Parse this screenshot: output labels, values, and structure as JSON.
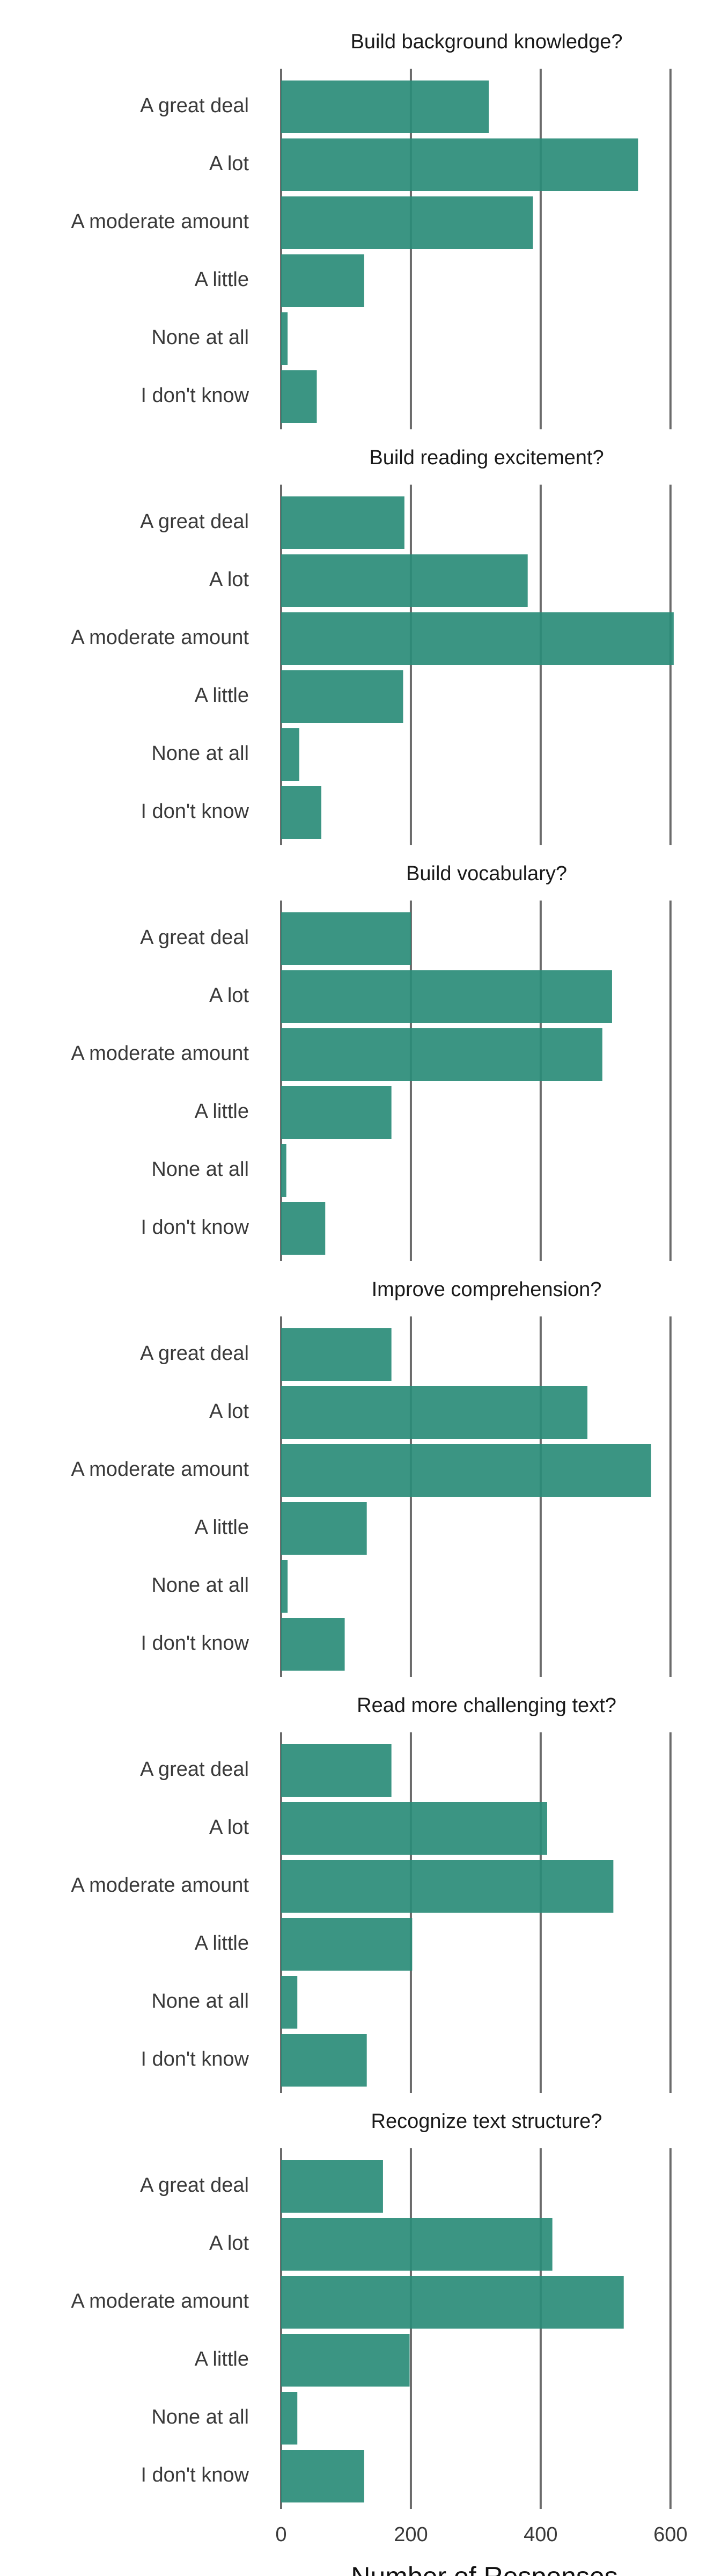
{
  "chart_data": {
    "type": "bar",
    "orientation": "horizontal",
    "categories": [
      "A great deal",
      "A lot",
      "A moderate amount",
      "A little",
      "None at all",
      "I don't know"
    ],
    "xlabel": "Number of Responses",
    "xlim": [
      0,
      620
    ],
    "xticks": [
      0,
      200,
      400,
      600
    ],
    "grid": true,
    "bar_color": "#2a8c78",
    "panels": [
      {
        "title": "Build background knowledge?",
        "values": [
          320,
          550,
          388,
          128,
          10,
          55
        ]
      },
      {
        "title": "Build reading excitement?",
        "values": [
          190,
          380,
          605,
          188,
          28,
          62
        ]
      },
      {
        "title": "Build vocabulary?",
        "values": [
          200,
          510,
          495,
          170,
          8,
          68
        ]
      },
      {
        "title": "Improve comprehension?",
        "values": [
          170,
          472,
          570,
          132,
          10,
          98
        ]
      },
      {
        "title": "Read more challenging text?",
        "values": [
          170,
          410,
          512,
          202,
          25,
          132
        ]
      },
      {
        "title": "Recognize text structure?",
        "values": [
          157,
          418,
          528,
          198,
          25,
          128
        ]
      }
    ]
  }
}
